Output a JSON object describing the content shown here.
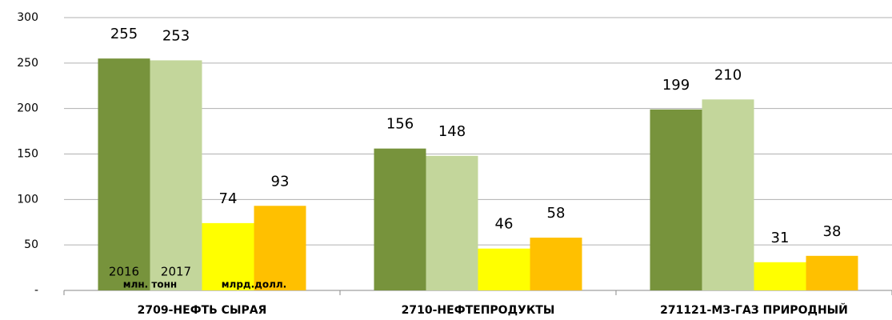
{
  "chart_data": {
    "type": "bar",
    "categories": [
      "2709-НЕФТЬ СЫРАЯ",
      "2710-НЕФТЕПРОДУКТЫ",
      "271121-МЗ-ГАЗ ПРИРОДНЫЙ"
    ],
    "series": [
      {
        "color": "#77933c",
        "values": [
          255,
          156,
          199
        ]
      },
      {
        "color": "#c3d69b",
        "values": [
          253,
          148,
          210
        ]
      },
      {
        "color": "#ffff00",
        "values": [
          74,
          46,
          31
        ]
      },
      {
        "color": "#ffc000",
        "values": [
          93,
          58,
          38
        ]
      }
    ],
    "annotations": [
      "2016",
      "2017",
      "млн. тонн",
      "млрд.долл."
    ],
    "ylim": [
      0,
      300
    ],
    "yticks": [
      {
        "value": 0,
        "label": "-"
      },
      50,
      100,
      150,
      200,
      250,
      300
    ],
    "grid": true
  }
}
